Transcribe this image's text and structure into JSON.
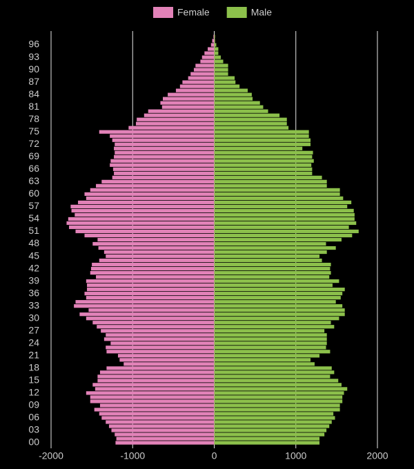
{
  "chart_data": {
    "type": "population_pyramid",
    "categories": [
      "00",
      null,
      null,
      "03",
      null,
      null,
      "06",
      null,
      null,
      "09",
      null,
      null,
      "12",
      null,
      null,
      "15",
      null,
      null,
      "18",
      null,
      null,
      "21",
      null,
      null,
      "24",
      null,
      null,
      "27",
      null,
      null,
      "30",
      null,
      null,
      "33",
      null,
      null,
      "36",
      null,
      null,
      "39",
      null,
      null,
      "42",
      null,
      null,
      "45",
      null,
      null,
      "48",
      null,
      null,
      "51",
      null,
      null,
      "54",
      null,
      null,
      "57",
      null,
      null,
      "60",
      null,
      null,
      "63",
      null,
      null,
      "66",
      null,
      null,
      "69",
      null,
      null,
      "72",
      null,
      null,
      "75",
      null,
      null,
      "78",
      null,
      null,
      "81",
      null,
      null,
      "84",
      null,
      null,
      "87",
      null,
      null,
      "90",
      null,
      null,
      "93",
      null,
      null,
      "96",
      null,
      null
    ],
    "series": [
      {
        "name": "Female",
        "color": "#e282b8",
        "values": [
          -1210,
          -1200,
          -1220,
          -1260,
          -1290,
          -1330,
          -1380,
          -1410,
          -1470,
          -1400,
          -1520,
          -1520,
          -1570,
          -1460,
          -1490,
          -1430,
          -1430,
          -1400,
          -1320,
          -1110,
          -1160,
          -1180,
          -1320,
          -1330,
          -1270,
          -1350,
          -1330,
          -1390,
          -1440,
          -1490,
          -1570,
          -1650,
          -1540,
          -1720,
          -1700,
          -1570,
          -1590,
          -1560,
          -1560,
          -1570,
          -1450,
          -1520,
          -1510,
          -1500,
          -1410,
          -1330,
          -1350,
          -1420,
          -1490,
          -1430,
          -1590,
          -1700,
          -1780,
          -1810,
          -1790,
          -1710,
          -1750,
          -1760,
          -1670,
          -1570,
          -1590,
          -1520,
          -1450,
          -1380,
          -1250,
          -1230,
          -1240,
          -1280,
          -1270,
          -1230,
          -1220,
          -1230,
          -1220,
          -1250,
          -1280,
          -1410,
          -1050,
          -960,
          -950,
          -860,
          -810,
          -640,
          -660,
          -630,
          -570,
          -470,
          -420,
          -390,
          -320,
          -290,
          -250,
          -230,
          -170,
          -150,
          -120,
          -80,
          -40,
          -25,
          -10
        ]
      },
      {
        "name": "Male",
        "color": "#8cc04b",
        "values": [
          1290,
          1290,
          1350,
          1375,
          1410,
          1440,
          1480,
          1460,
          1540,
          1540,
          1570,
          1570,
          1590,
          1630,
          1560,
          1520,
          1420,
          1470,
          1440,
          1230,
          1180,
          1290,
          1420,
          1370,
          1380,
          1380,
          1380,
          1350,
          1470,
          1430,
          1530,
          1600,
          1600,
          1570,
          1490,
          1550,
          1570,
          1600,
          1450,
          1530,
          1410,
          1430,
          1420,
          1430,
          1320,
          1290,
          1380,
          1490,
          1370,
          1560,
          1690,
          1770,
          1650,
          1740,
          1720,
          1720,
          1710,
          1630,
          1680,
          1580,
          1540,
          1540,
          1380,
          1380,
          1320,
          1200,
          1200,
          1190,
          1220,
          1200,
          1210,
          1080,
          1180,
          1180,
          1160,
          1160,
          910,
          890,
          890,
          800,
          660,
          600,
          560,
          470,
          460,
          410,
          310,
          260,
          250,
          170,
          170,
          170,
          110,
          80,
          50,
          50,
          25,
          10,
          10
        ]
      }
    ],
    "xlim": [
      -2000,
      2000
    ],
    "xticks": [
      -2000,
      -1000,
      0,
      1000,
      2000
    ],
    "grid": true
  }
}
